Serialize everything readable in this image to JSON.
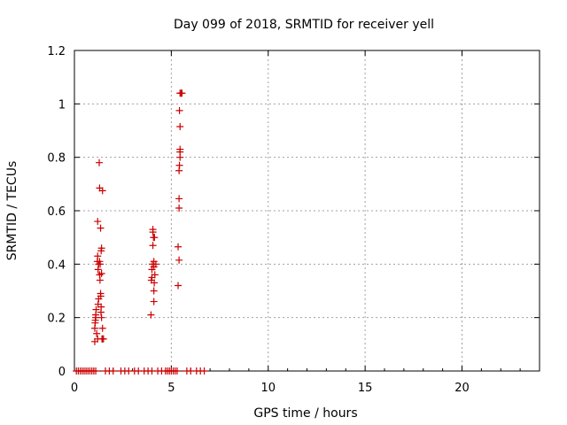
{
  "chart_data": {
    "type": "scatter",
    "title": "Day 099 of 2018, SRMTID for receiver yell",
    "xlabel": "GPS time / hours",
    "ylabel": "SRMTID / TECUs",
    "xlim": [
      0,
      24
    ],
    "ylim": [
      0,
      1.2
    ],
    "xticks": [
      0,
      5,
      10,
      15,
      20
    ],
    "yticks": [
      0,
      0.2,
      0.4,
      0.6,
      0.8,
      1,
      1.2
    ],
    "xtick_labels": [
      "0",
      "5",
      "10",
      "15",
      "20"
    ],
    "ytick_labels": [
      "0",
      "0.2",
      "0.4",
      "0.6",
      "0.8",
      "1",
      "1.2"
    ],
    "grid": true,
    "marker": "+",
    "color": "#cc0000",
    "series": [
      {
        "name": "SRMTID",
        "points": [
          [
            0.1,
            0
          ],
          [
            0.2,
            0
          ],
          [
            0.3,
            0
          ],
          [
            0.4,
            0
          ],
          [
            0.5,
            0
          ],
          [
            0.6,
            0
          ],
          [
            0.7,
            0
          ],
          [
            0.8,
            0
          ],
          [
            0.9,
            0
          ],
          [
            1.0,
            0
          ],
          [
            1.1,
            0
          ],
          [
            1.6,
            0
          ],
          [
            1.8,
            0
          ],
          [
            2.0,
            0
          ],
          [
            2.4,
            0
          ],
          [
            2.6,
            0
          ],
          [
            2.8,
            0
          ],
          [
            3.1,
            0
          ],
          [
            3.3,
            0
          ],
          [
            3.6,
            0
          ],
          [
            3.8,
            0
          ],
          [
            4.0,
            0
          ],
          [
            4.3,
            0
          ],
          [
            4.5,
            0
          ],
          [
            4.7,
            0
          ],
          [
            4.8,
            0
          ],
          [
            4.9,
            0
          ],
          [
            5.0,
            0
          ],
          [
            5.1,
            0
          ],
          [
            5.2,
            0
          ],
          [
            5.3,
            0
          ],
          [
            5.8,
            0
          ],
          [
            6.0,
            0
          ],
          [
            6.3,
            0
          ],
          [
            6.5,
            0
          ],
          [
            6.7,
            0
          ],
          [
            1.05,
            0.11
          ],
          [
            1.05,
            0.16
          ],
          [
            1.07,
            0.18
          ],
          [
            1.08,
            0.19
          ],
          [
            1.1,
            0.2
          ],
          [
            1.1,
            0.21
          ],
          [
            1.12,
            0.23
          ],
          [
            1.15,
            0.14
          ],
          [
            1.2,
            0.12
          ],
          [
            1.22,
            0.25
          ],
          [
            1.25,
            0.27
          ],
          [
            1.18,
            0.41
          ],
          [
            1.2,
            0.43
          ],
          [
            1.22,
            0.38
          ],
          [
            1.25,
            0.4
          ],
          [
            1.2,
            0.56
          ],
          [
            1.28,
            0.78
          ],
          [
            1.3,
            0.685
          ],
          [
            1.35,
            0.535
          ],
          [
            1.3,
            0.36
          ],
          [
            1.32,
            0.34
          ],
          [
            1.33,
            0.4
          ],
          [
            1.3,
            0.41
          ],
          [
            1.35,
            0.29
          ],
          [
            1.36,
            0.28
          ],
          [
            1.37,
            0.22
          ],
          [
            1.38,
            0.24
          ],
          [
            1.38,
            0.45
          ],
          [
            1.4,
            0.46
          ],
          [
            1.4,
            0.365
          ],
          [
            1.42,
            0.12
          ],
          [
            1.45,
            0.675
          ],
          [
            1.45,
            0.12
          ],
          [
            1.5,
            0.12
          ],
          [
            1.45,
            0.16
          ],
          [
            1.4,
            0.2
          ],
          [
            3.95,
            0.21
          ],
          [
            3.97,
            0.34
          ],
          [
            4.0,
            0.35
          ],
          [
            4.0,
            0.38
          ],
          [
            4.02,
            0.4
          ],
          [
            4.05,
            0.47
          ],
          [
            4.05,
            0.52
          ],
          [
            4.05,
            0.53
          ],
          [
            4.08,
            0.5
          ],
          [
            4.1,
            0.41
          ],
          [
            4.1,
            0.39
          ],
          [
            4.1,
            0.26
          ],
          [
            4.1,
            0.3
          ],
          [
            4.12,
            0.33
          ],
          [
            4.13,
            0.5
          ],
          [
            4.15,
            0.36
          ],
          [
            4.2,
            0.4
          ],
          [
            5.35,
            0.32
          ],
          [
            5.35,
            0.465
          ],
          [
            5.4,
            0.415
          ],
          [
            5.4,
            0.61
          ],
          [
            5.4,
            0.645
          ],
          [
            5.4,
            0.75
          ],
          [
            5.42,
            0.77
          ],
          [
            5.45,
            0.8
          ],
          [
            5.45,
            0.82
          ],
          [
            5.45,
            0.83
          ],
          [
            5.45,
            0.915
          ],
          [
            5.42,
            0.975
          ],
          [
            5.45,
            1.04
          ],
          [
            5.5,
            1.04
          ],
          [
            5.55,
            1.04
          ]
        ]
      }
    ]
  }
}
